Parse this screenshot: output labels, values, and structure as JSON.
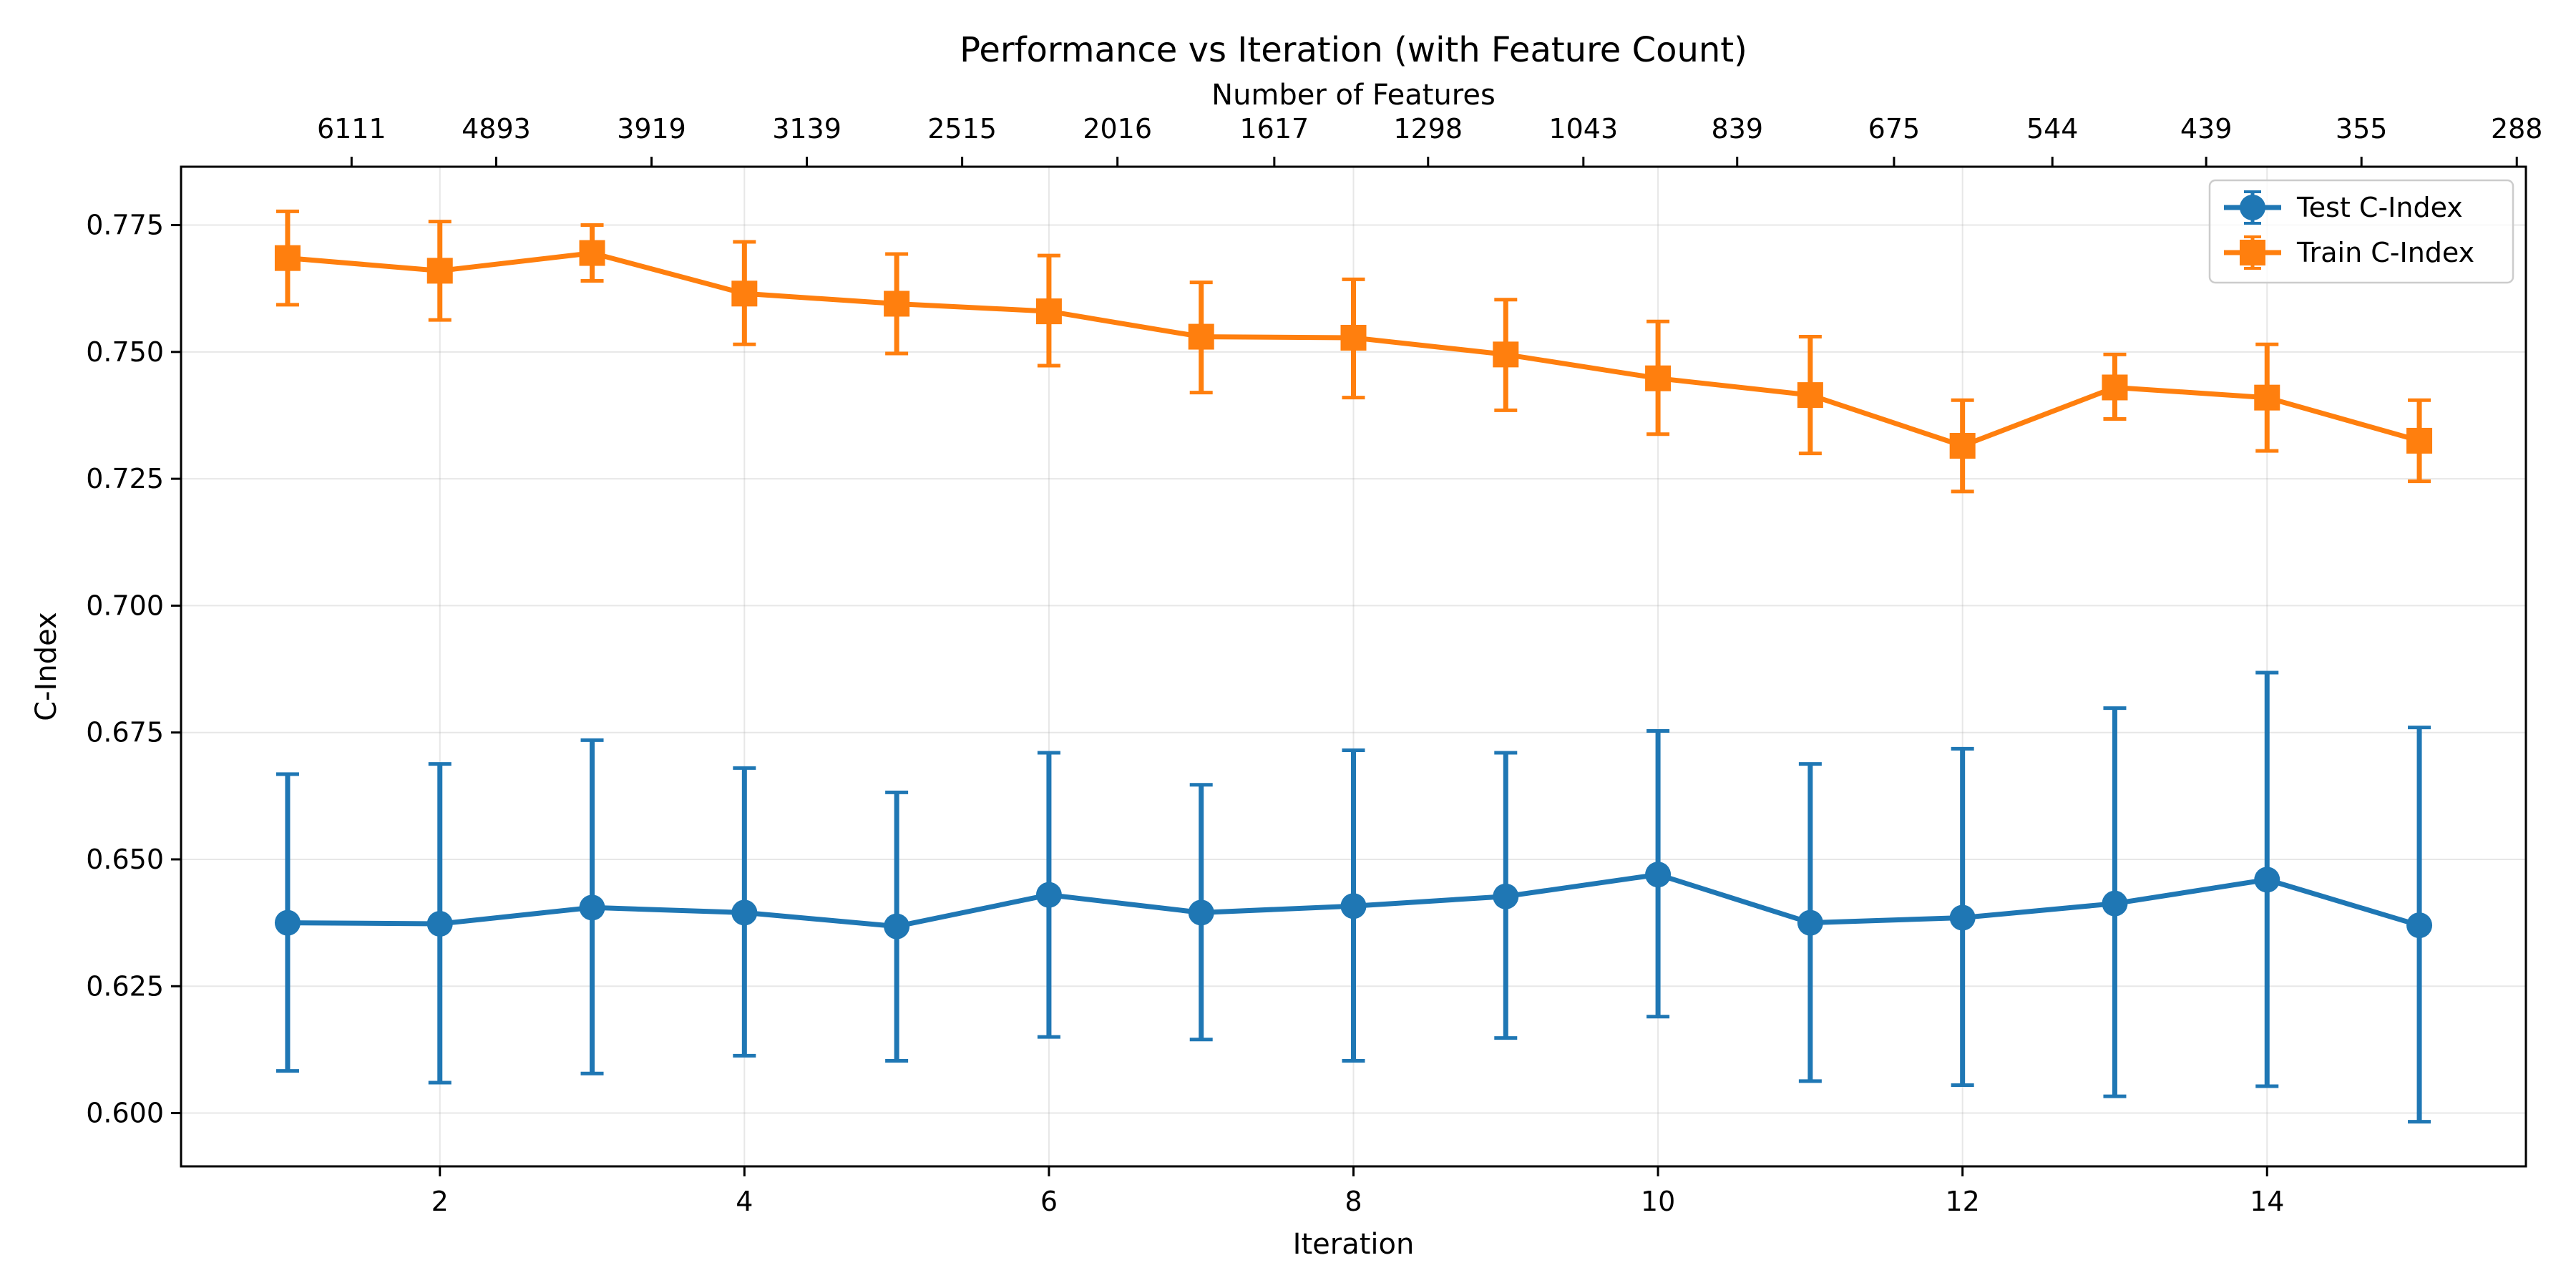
{
  "chart_data": {
    "type": "line",
    "title": "Performance vs Iteration (with Feature Count)",
    "xlabel": "Iteration",
    "ylabel": "C-Index",
    "top_xlabel": "Number of Features",
    "xlim": [
      0.3,
      15.7
    ],
    "ylim": [
      0.5895,
      0.7865
    ],
    "x": [
      1,
      2,
      3,
      4,
      5,
      6,
      7,
      8,
      9,
      10,
      11,
      12,
      13,
      14,
      15
    ],
    "x_ticks": [
      2,
      4,
      6,
      8,
      10,
      12,
      14
    ],
    "y_ticks": [
      0.6,
      0.625,
      0.65,
      0.675,
      0.7,
      0.725,
      0.75,
      0.775
    ],
    "y_tick_labels": [
      "0.600",
      "0.625",
      "0.650",
      "0.675",
      "0.700",
      "0.725",
      "0.750",
      "0.775"
    ],
    "top_axis": {
      "positions": [
        1.42,
        2.37,
        3.39,
        4.41,
        5.43,
        6.45,
        7.48,
        8.49,
        9.51,
        10.52,
        11.55,
        12.59,
        13.6,
        14.62,
        15.64
      ],
      "labels": [
        "6111",
        "4893",
        "3919",
        "3139",
        "2515",
        "2016",
        "1617",
        "1298",
        "1043",
        "839",
        "675",
        "544",
        "439",
        "355",
        "288"
      ]
    },
    "grid": true,
    "legend_position": "top-right",
    "series": [
      {
        "name": "Test C-Index",
        "color": "#1f77b4",
        "marker": "circle",
        "values": [
          0.6375,
          0.6373,
          0.6405,
          0.6395,
          0.6368,
          0.643,
          0.6395,
          0.6408,
          0.6427,
          0.647,
          0.6375,
          0.6385,
          0.6413,
          0.646,
          0.637
        ],
        "err_low": [
          0.6083,
          0.606,
          0.6078,
          0.6113,
          0.6103,
          0.615,
          0.6145,
          0.6103,
          0.6148,
          0.619,
          0.6063,
          0.6055,
          0.6033,
          0.6053,
          0.5983
        ],
        "err_high": [
          0.6668,
          0.6688,
          0.6735,
          0.668,
          0.6632,
          0.671,
          0.6647,
          0.6715,
          0.671,
          0.6753,
          0.6688,
          0.6718,
          0.6798,
          0.6868,
          0.676
        ]
      },
      {
        "name": "Train C-Index",
        "color": "#ff7f0e",
        "marker": "square",
        "values": [
          0.7685,
          0.766,
          0.7695,
          0.7615,
          0.7595,
          0.758,
          0.753,
          0.7528,
          0.7495,
          0.7448,
          0.7415,
          0.7315,
          0.743,
          0.741,
          0.7325
        ],
        "err_low": [
          0.7593,
          0.7563,
          0.764,
          0.7515,
          0.7497,
          0.7473,
          0.742,
          0.741,
          0.7385,
          0.7338,
          0.73,
          0.7225,
          0.7368,
          0.7305,
          0.7245
        ],
        "err_high": [
          0.7777,
          0.7757,
          0.775,
          0.7717,
          0.7693,
          0.769,
          0.7637,
          0.7643,
          0.7603,
          0.756,
          0.753,
          0.7405,
          0.7495,
          0.7515,
          0.7405
        ]
      }
    ]
  }
}
